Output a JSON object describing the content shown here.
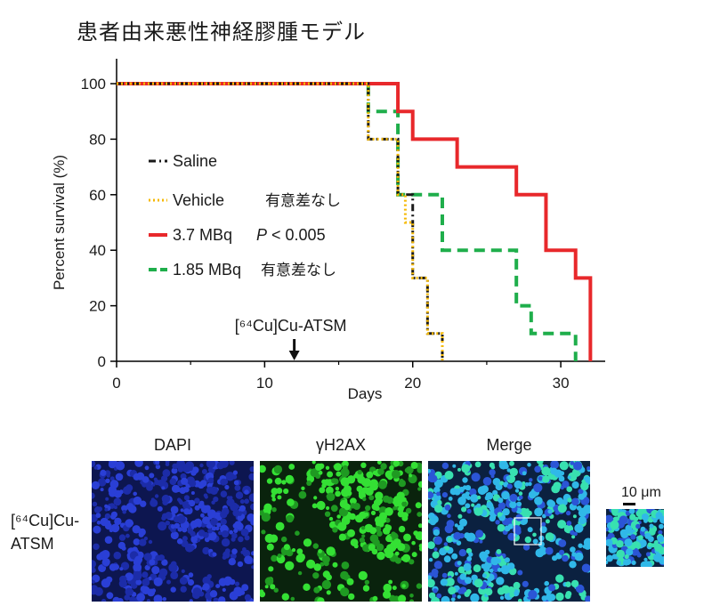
{
  "title": "患者由来悪性神経膠腫モデル",
  "chart_data": {
    "type": "line",
    "subtype": "step (Kaplan-Meier survival)",
    "xlabel": "Days",
    "ylabel": "Percent survival (%)",
    "xlim": [
      0,
      33
    ],
    "ylim": [
      0,
      100
    ],
    "xticks": [
      0,
      10,
      20,
      30
    ],
    "yticks": [
      0,
      20,
      40,
      60,
      80,
      100
    ],
    "grid": false,
    "legend_position": "center-left",
    "series": [
      {
        "name": "Saline",
        "color": "#1a1a1a",
        "style": "dash-dot",
        "x": [
          0,
          17,
          19,
          20,
          21,
          22
        ],
        "y": [
          100,
          80,
          60,
          30,
          10,
          0
        ]
      },
      {
        "name": "Vehicle",
        "color": "#f5b800",
        "style": "dotted",
        "x": [
          0,
          17,
          19,
          19.5,
          20,
          21,
          22
        ],
        "y": [
          100,
          80,
          60,
          50,
          30,
          10,
          0
        ]
      },
      {
        "name": "3.7 MBq",
        "color": "#e8282b",
        "style": "solid",
        "x": [
          0,
          19,
          20,
          23,
          27,
          29,
          31,
          32
        ],
        "y": [
          100,
          90,
          80,
          70,
          60,
          40,
          30,
          0
        ]
      },
      {
        "name": "1.85 MBq",
        "color": "#1fae4b",
        "style": "dashed",
        "x": [
          0,
          17,
          19,
          22,
          27,
          28,
          31
        ],
        "y": [
          100,
          90,
          60,
          40,
          20,
          10,
          0
        ]
      }
    ],
    "legend": [
      {
        "label": "Saline",
        "note": ""
      },
      {
        "label": "Vehicle",
        "note": "有意差なし"
      },
      {
        "label": "3.7 MBq",
        "note": "P < 0.005"
      },
      {
        "label": "1.85 MBq",
        "note": "有意差なし"
      }
    ],
    "annotation": {
      "text": "[⁶⁴Cu]Cu-ATSM",
      "x": 12
    }
  },
  "panels": {
    "row_label_line1": "[⁶⁴Cu]Cu-",
    "row_label_line2": "ATSM",
    "labels": [
      "DAPI",
      "γH2AX",
      "Merge"
    ],
    "scale_text": "10 μm",
    "colors": {
      "dapi": "#1d2fb0",
      "h2ax": "#2bd12b",
      "merge": "#22a6d8"
    }
  }
}
